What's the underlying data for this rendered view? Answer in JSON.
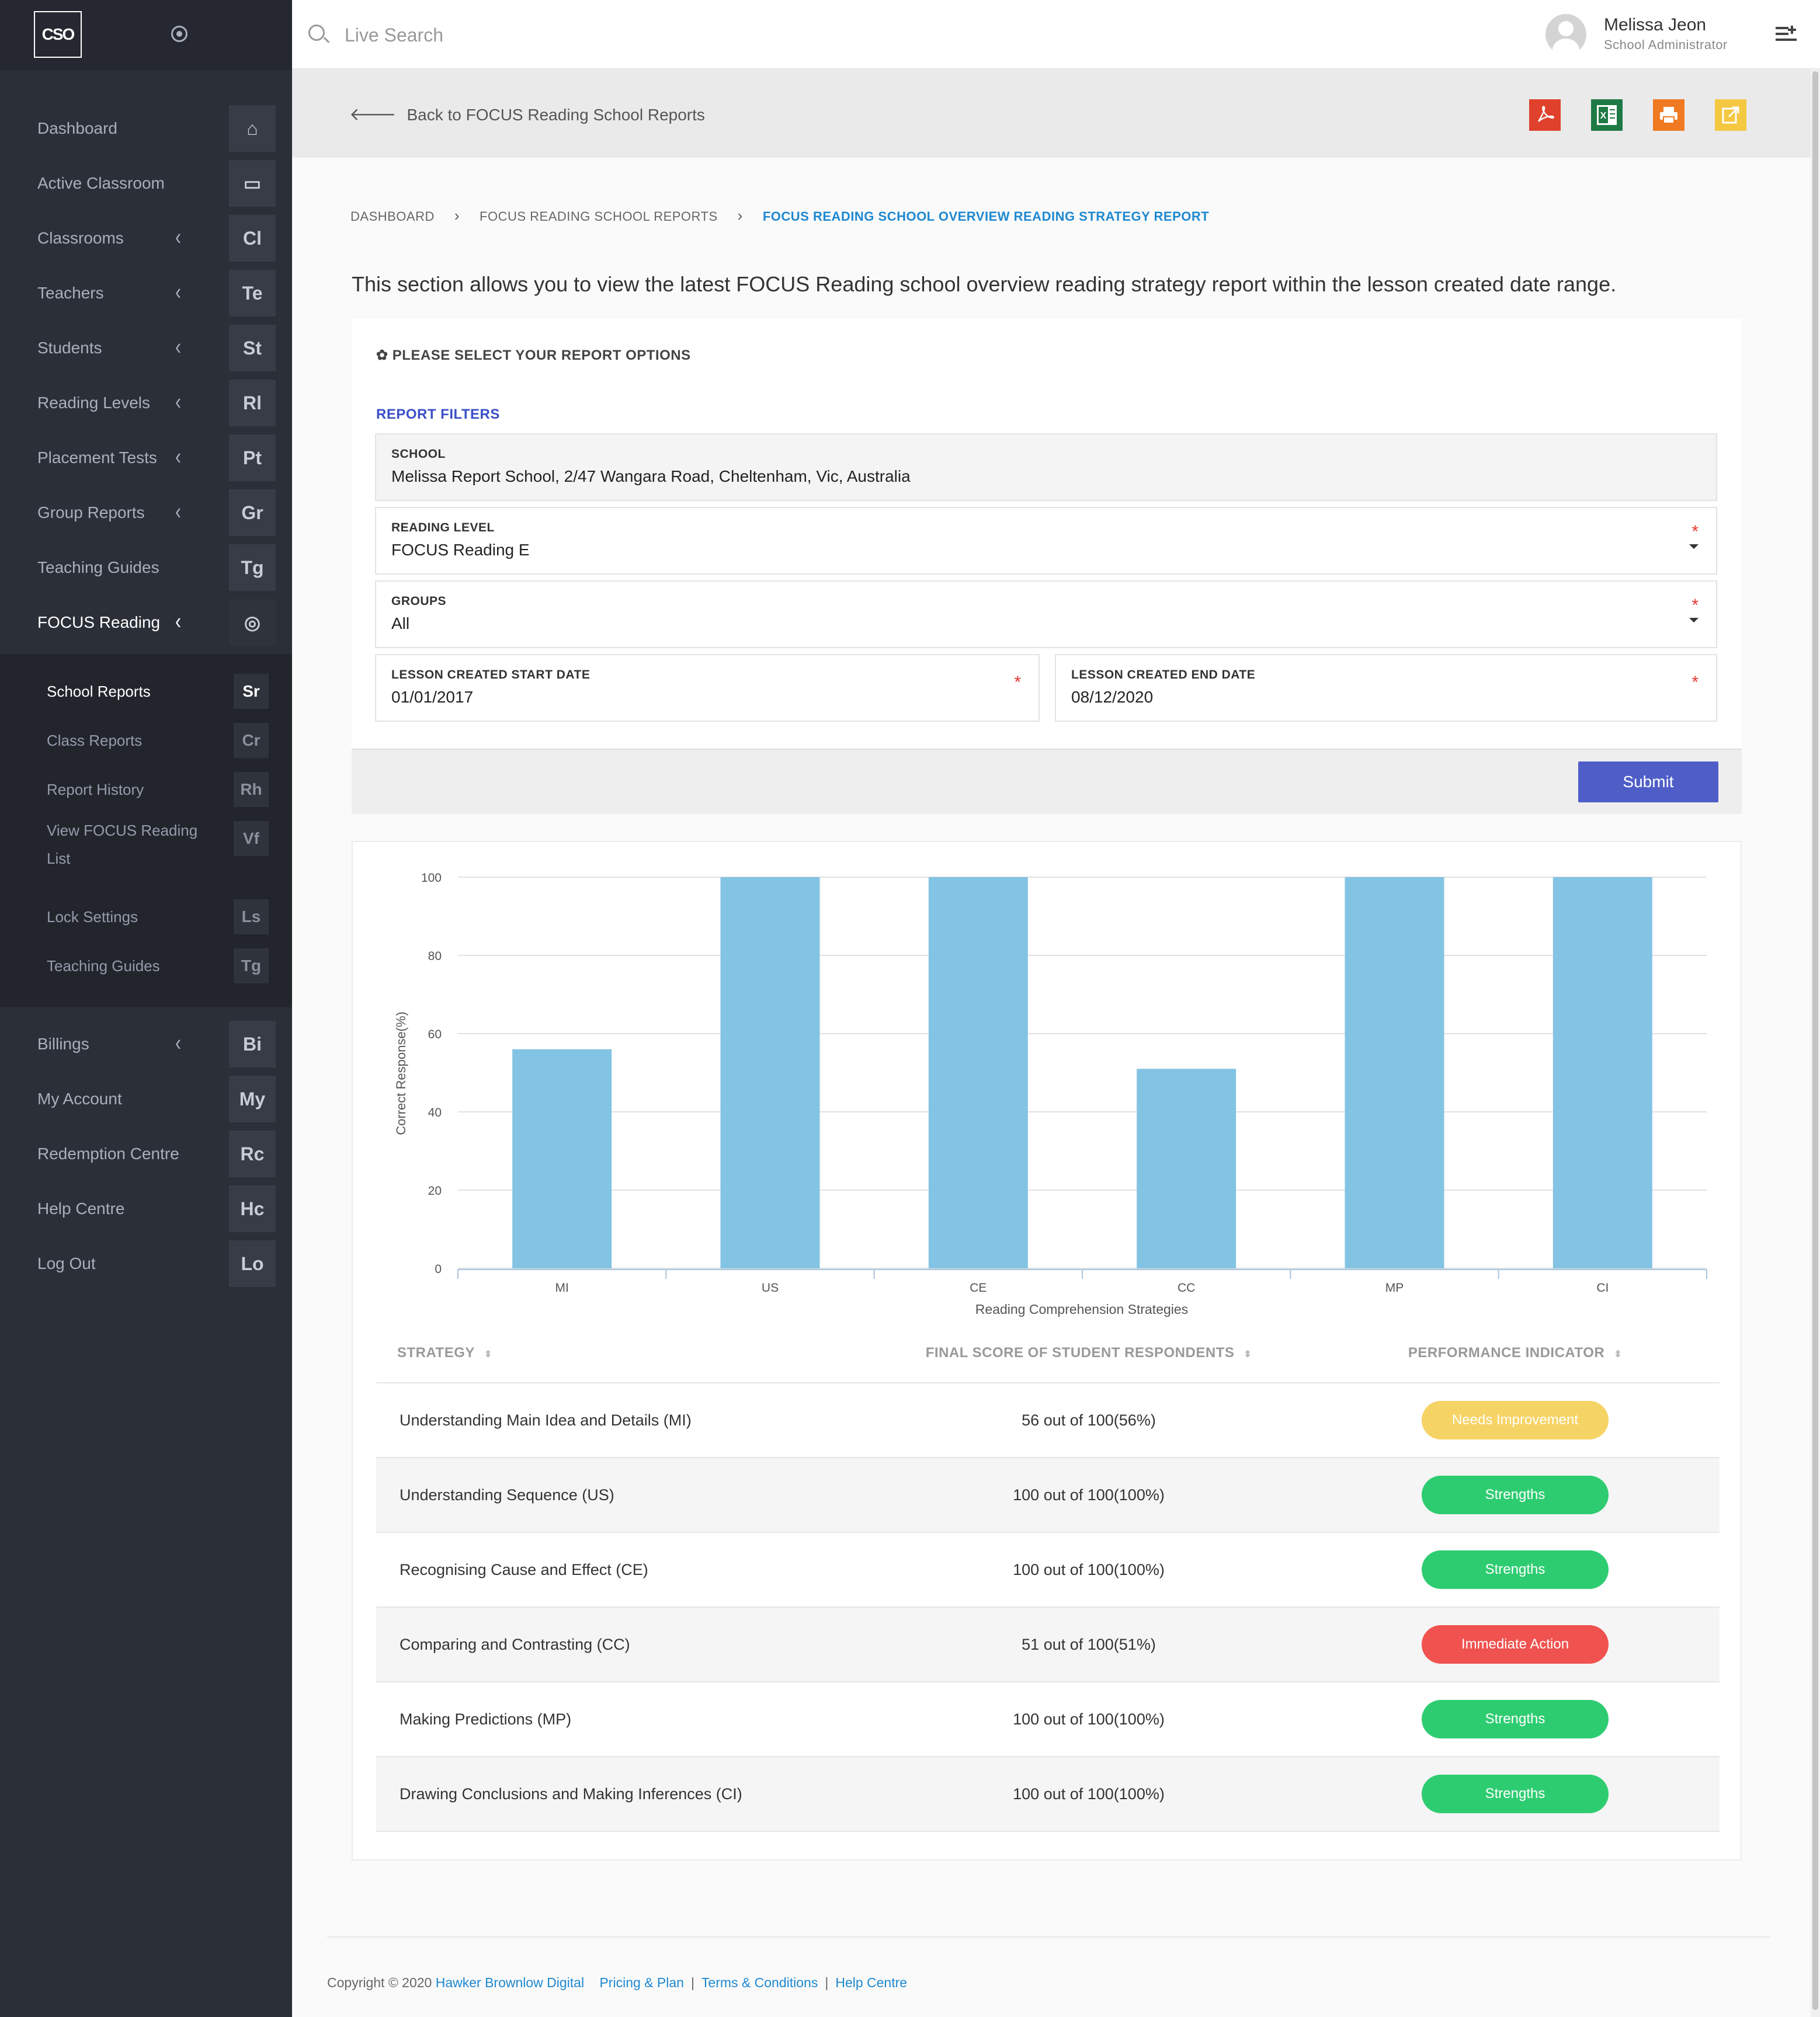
{
  "app": {
    "logo_text": "CSO"
  },
  "sidebar": {
    "items": [
      {
        "label": "Dashboard",
        "abbr": "⌂",
        "has_chevron": false
      },
      {
        "label": "Active Classroom",
        "abbr": "▭",
        "has_chevron": false
      },
      {
        "label": "Classrooms",
        "abbr": "Cl",
        "has_chevron": true
      },
      {
        "label": "Teachers",
        "abbr": "Te",
        "has_chevron": true
      },
      {
        "label": "Students",
        "abbr": "St",
        "has_chevron": true
      },
      {
        "label": "Reading Levels",
        "abbr": "Rl",
        "has_chevron": true
      },
      {
        "label": "Placement Tests",
        "abbr": "Pt",
        "has_chevron": true
      },
      {
        "label": "Group Reports",
        "abbr": "Gr",
        "has_chevron": true
      },
      {
        "label": "Teaching Guides",
        "abbr": "Tg",
        "has_chevron": false
      },
      {
        "label": "FOCUS Reading",
        "abbr": "◎",
        "has_chevron": true
      }
    ],
    "submenu": [
      {
        "label": "School Reports",
        "abbr": "Sr"
      },
      {
        "label": "Class Reports",
        "abbr": "Cr"
      },
      {
        "label": "Report History",
        "abbr": "Rh"
      },
      {
        "label": "View FOCUS Reading List",
        "abbr": "Vf"
      },
      {
        "label": "Lock Settings",
        "abbr": "Ls"
      },
      {
        "label": "Teaching Guides",
        "abbr": "Tg"
      }
    ],
    "bottom_items": [
      {
        "label": "Billings",
        "abbr": "Bi",
        "has_chevron": true
      },
      {
        "label": "My Account",
        "abbr": "My",
        "has_chevron": false
      },
      {
        "label": "Redemption Centre",
        "abbr": "Rc",
        "has_chevron": false
      },
      {
        "label": "Help Centre",
        "abbr": "Hc",
        "has_chevron": false
      },
      {
        "label": "Log Out",
        "abbr": "Lo",
        "has_chevron": false
      }
    ]
  },
  "topbar": {
    "search_placeholder": "Live Search",
    "user_name": "Melissa Jeon",
    "user_role": "School Administrator"
  },
  "actionbar": {
    "back_label": "Back to FOCUS Reading School Reports",
    "exports": [
      {
        "name": "pdf-export-icon",
        "color": "#e0412c"
      },
      {
        "name": "excel-export-icon",
        "color": "#1e7a45"
      },
      {
        "name": "print-icon",
        "color": "#f07a21"
      },
      {
        "name": "share-icon",
        "color": "#f5c842"
      }
    ]
  },
  "breadcrumb": {
    "items": [
      "DASHBOARD",
      "FOCUS READING SCHOOL REPORTS",
      "FOCUS READING SCHOOL OVERVIEW READING STRATEGY REPORT"
    ]
  },
  "intro": "This section allows you to view the latest FOCUS Reading school overview reading strategy report within the lesson created date range.",
  "options": {
    "title": "✿ PLEASE SELECT YOUR REPORT OPTIONS",
    "filters_title": "REPORT FILTERS",
    "school": {
      "label": "SCHOOL",
      "value": "Melissa Report School, 2/47 Wangara Road, Cheltenham, Vic, Australia"
    },
    "reading_level": {
      "label": "READING LEVEL",
      "value": "FOCUS Reading E"
    },
    "groups": {
      "label": "GROUPS",
      "value": "All"
    },
    "start_date": {
      "label": "LESSON CREATED START DATE",
      "value": "01/01/2017"
    },
    "end_date": {
      "label": "LESSON CREATED END DATE",
      "value": "08/12/2020"
    },
    "required_mark": "*",
    "submit_label": "Submit"
  },
  "chart_data": {
    "type": "bar",
    "categories": [
      "MI",
      "US",
      "CE",
      "CC",
      "MP",
      "CI"
    ],
    "values": [
      56,
      100,
      100,
      51,
      100,
      100
    ],
    "xlabel": "Reading Comprehension Strategies",
    "ylabel": "Correct Response(%)",
    "ylim": [
      0,
      100
    ],
    "yticks": [
      0,
      20,
      40,
      60,
      80,
      100
    ],
    "bar_color": "#83c3e3",
    "grid": true
  },
  "table": {
    "headers": [
      "STRATEGY",
      "FINAL SCORE OF STUDENT RESPONDENTS",
      "PERFORMANCE INDICATOR"
    ],
    "sort_icon": "⬍",
    "rows": [
      {
        "strategy": "Understanding Main Idea and Details (MI)",
        "score": "56 out of 100(56%)",
        "indicator": "Needs Improvement",
        "color": "#f6d365"
      },
      {
        "strategy": "Understanding Sequence (US)",
        "score": "100 out of 100(100%)",
        "indicator": "Strengths",
        "color": "#2ecc71"
      },
      {
        "strategy": "Recognising Cause and Effect (CE)",
        "score": "100 out of 100(100%)",
        "indicator": "Strengths",
        "color": "#2ecc71"
      },
      {
        "strategy": "Comparing and Contrasting (CC)",
        "score": "51 out of 100(51%)",
        "indicator": "Immediate Action",
        "color": "#f0524f"
      },
      {
        "strategy": "Making Predictions (MP)",
        "score": "100 out of 100(100%)",
        "indicator": "Strengths",
        "color": "#2ecc71"
      },
      {
        "strategy": "Drawing Conclusions and Making Inferences (CI)",
        "score": "100 out of 100(100%)",
        "indicator": "Strengths",
        "color": "#2ecc71"
      }
    ]
  },
  "footer": {
    "copyright": "Copyright © 2020",
    "company": "Hawker Brownlow Digital",
    "links": [
      "Pricing & Plan",
      "Terms & Conditions",
      "Help Centre"
    ],
    "separator": "|"
  }
}
